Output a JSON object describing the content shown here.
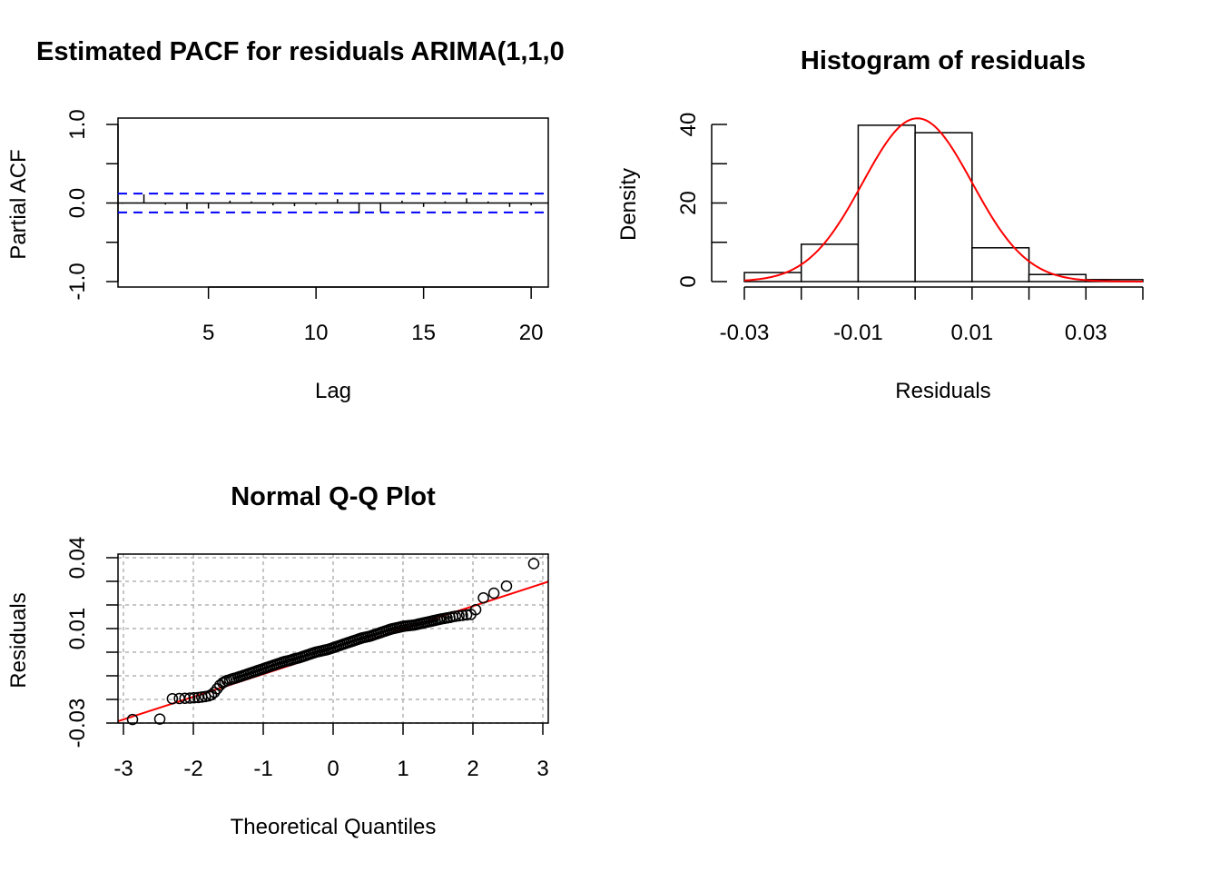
{
  "chart_data": [
    {
      "type": "bar",
      "title": "Estimated PACF for residuals ARIMA(1,1,0",
      "xlabel": "Lag",
      "ylabel": "Partial ACF",
      "xlim": [
        0.5,
        20.5
      ],
      "ylim": [
        -1.0,
        1.0
      ],
      "x_ticks": [
        "5",
        "10",
        "15",
        "20"
      ],
      "y_ticks": [
        "-1.0",
        "0.0",
        "1.0"
      ],
      "lags": [
        1,
        2,
        3,
        4,
        5,
        6,
        7,
        8,
        9,
        10,
        11,
        12,
        13,
        14,
        15,
        16,
        17,
        18,
        19,
        20
      ],
      "values": [
        -0.01,
        0.11,
        -0.02,
        -0.08,
        -0.07,
        0.03,
        0.02,
        -0.03,
        -0.04,
        -0.02,
        0.05,
        -0.13,
        -0.11,
        0.03,
        -0.05,
        0.02,
        0.06,
        0.02,
        -0.05,
        -0.03
      ],
      "confidence_bound": 0.12,
      "bound_color": "#0000ff"
    },
    {
      "type": "bar",
      "title": "Histogram of residuals",
      "xlabel": "Residuals",
      "ylabel": "Density",
      "xlim": [
        -0.03,
        0.04
      ],
      "ylim": [
        0,
        40
      ],
      "x_ticks": [
        "-0.03",
        "-0.01",
        "0.01",
        "0.03"
      ],
      "y_ticks": [
        "0",
        "20",
        "40"
      ],
      "bin_edges": [
        -0.03,
        -0.02,
        -0.01,
        0.0,
        0.01,
        0.02,
        0.03,
        0.04
      ],
      "densities": [
        2.3,
        9.5,
        39.8,
        37.9,
        8.6,
        1.8,
        0.5
      ],
      "normal_curve": {
        "mean": 0.0004,
        "sd": 0.0096,
        "color": "#ff0000"
      }
    },
    {
      "type": "scatter",
      "title": "Normal Q-Q Plot",
      "xlabel": "Theoretical Quantiles",
      "ylabel": "Residuals",
      "xlim": [
        -3,
        3
      ],
      "ylim": [
        -0.03,
        0.04
      ],
      "x_ticks": [
        "-3",
        "-2",
        "-1",
        "0",
        "1",
        "2",
        "3"
      ],
      "y_ticks": [
        "-0.03",
        "0.01",
        "0.04"
      ],
      "grid": true,
      "qq_line": {
        "intercept": 0.0003,
        "slope": 0.0096,
        "color": "#ff0000"
      },
      "points": {
        "x": [
          -2.87,
          -2.48,
          -2.3,
          -2.2,
          -2.12,
          -2.05,
          -1.99,
          -1.93,
          -1.88,
          -1.83,
          -1.78,
          -1.74,
          -1.7,
          -1.66,
          -1.62,
          -1.58,
          -1.55,
          -1.52,
          -1.48,
          -1.45,
          -1.42,
          -1.39,
          -1.36,
          -1.33,
          -1.3,
          -1.27,
          -1.24,
          -1.21,
          -1.18,
          -1.15,
          -1.12,
          -1.09,
          -1.06,
          -1.03,
          -1.0,
          -0.97,
          -0.94,
          -0.91,
          -0.88,
          -0.85,
          -0.82,
          -0.79,
          -0.76,
          -0.73,
          -0.7,
          -0.67,
          -0.64,
          -0.61,
          -0.58,
          -0.55,
          -0.52,
          -0.49,
          -0.46,
          -0.43,
          -0.4,
          -0.37,
          -0.34,
          -0.31,
          -0.28,
          -0.25,
          -0.22,
          -0.19,
          -0.16,
          -0.13,
          -0.1,
          -0.07,
          -0.04,
          -0.01,
          0.02,
          0.05,
          0.08,
          0.11,
          0.14,
          0.17,
          0.2,
          0.23,
          0.26,
          0.29,
          0.32,
          0.35,
          0.38,
          0.41,
          0.44,
          0.47,
          0.5,
          0.53,
          0.56,
          0.59,
          0.62,
          0.65,
          0.68,
          0.71,
          0.74,
          0.77,
          0.8,
          0.83,
          0.86,
          0.89,
          0.92,
          0.95,
          0.98,
          1.01,
          1.04,
          1.07,
          1.1,
          1.13,
          1.16,
          1.19,
          1.22,
          1.25,
          1.28,
          1.31,
          1.34,
          1.37,
          1.4,
          1.43,
          1.46,
          1.49,
          1.52,
          1.55,
          1.59,
          1.63,
          1.67,
          1.71,
          1.75,
          1.8,
          1.85,
          1.91,
          1.97,
          2.04,
          2.15,
          2.3,
          2.48,
          2.87
        ],
        "y": [
          -0.0285,
          -0.0283,
          -0.0197,
          -0.0196,
          -0.0195,
          -0.0194,
          -0.0193,
          -0.0192,
          -0.019,
          -0.0188,
          -0.0185,
          -0.018,
          -0.017,
          -0.0155,
          -0.014,
          -0.013,
          -0.0125,
          -0.012,
          -0.0117,
          -0.0114,
          -0.0111,
          -0.0109,
          -0.0106,
          -0.0103,
          -0.01,
          -0.0097,
          -0.0094,
          -0.0091,
          -0.0088,
          -0.0085,
          -0.0082,
          -0.0079,
          -0.0076,
          -0.0073,
          -0.007,
          -0.0067,
          -0.0064,
          -0.0061,
          -0.0058,
          -0.0055,
          -0.0052,
          -0.0049,
          -0.0046,
          -0.0043,
          -0.004,
          -0.0038,
          -0.0036,
          -0.0034,
          -0.0031,
          -0.0028,
          -0.0026,
          -0.0024,
          -0.0021,
          -0.0018,
          -0.0015,
          -0.0012,
          -0.0009,
          -0.0006,
          -0.0003,
          0.0,
          0.0002,
          0.0004,
          0.0006,
          0.0008,
          0.001,
          0.0012,
          0.0015,
          0.0018,
          0.0021,
          0.0024,
          0.0027,
          0.003,
          0.0033,
          0.0036,
          0.0039,
          0.0042,
          0.0045,
          0.0048,
          0.0051,
          0.0054,
          0.0057,
          0.006,
          0.0062,
          0.0064,
          0.0066,
          0.0068,
          0.0071,
          0.0074,
          0.0077,
          0.008,
          0.0083,
          0.0086,
          0.0089,
          0.0092,
          0.0095,
          0.0098,
          0.01,
          0.0102,
          0.0104,
          0.0106,
          0.0108,
          0.011,
          0.0111,
          0.0112,
          0.0113,
          0.0114,
          0.0115,
          0.0117,
          0.0119,
          0.0121,
          0.0123,
          0.0125,
          0.0127,
          0.0129,
          0.0131,
          0.0133,
          0.0135,
          0.0137,
          0.0139,
          0.0141,
          0.0143,
          0.0145,
          0.0147,
          0.015,
          0.0152,
          0.0154,
          0.0156,
          0.0158,
          0.016,
          0.018,
          0.023,
          0.025,
          0.028,
          0.0375
        ]
      }
    }
  ]
}
